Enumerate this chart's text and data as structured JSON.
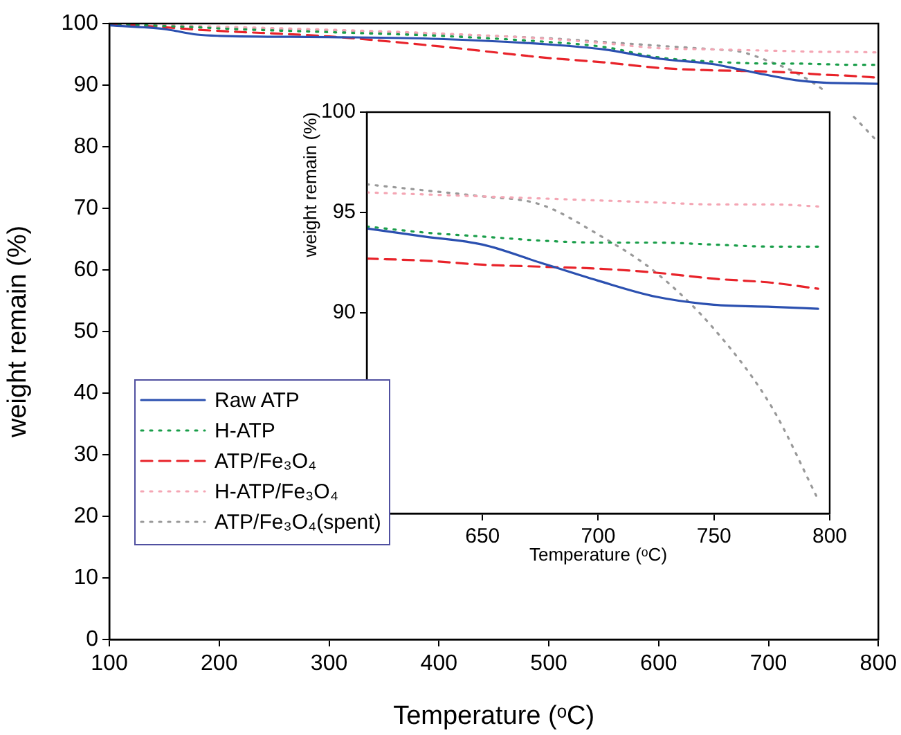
{
  "chart_data": [
    {
      "type": "line",
      "xlabel": "Temperature (ᵒC)",
      "ylabel": "weight remain (%)",
      "x": [
        100,
        150,
        180,
        200,
        300,
        400,
        500,
        550,
        600,
        650,
        675,
        700,
        725,
        750,
        775,
        800
      ],
      "series": [
        {
          "name": "Raw ATP",
          "color": "#2b50b0",
          "line_style": "solid",
          "values": [
            99.7,
            99.1,
            98.2,
            98.0,
            97.8,
            97.5,
            96.6,
            95.8,
            94.3,
            93.4,
            92.5,
            91.6,
            90.8,
            90.4,
            90.3,
            90.2
          ]
        },
        {
          "name": "H-ATP",
          "color": "#1a9e4a",
          "line_style": "dotted",
          "values": [
            100,
            99.6,
            99.4,
            99.2,
            98.6,
            98.0,
            97.0,
            96.2,
            94.5,
            93.8,
            93.6,
            93.5,
            93.5,
            93.4,
            93.3,
            93.3
          ]
        },
        {
          "name": "ATP/Fe₃O₄",
          "color": "#e8232a",
          "line_style": "dashed",
          "values": [
            100,
            99.4,
            99.0,
            98.8,
            97.9,
            96.3,
            94.4,
            93.7,
            92.8,
            92.4,
            92.3,
            92.2,
            92.0,
            91.7,
            91.5,
            91.2
          ]
        },
        {
          "name": "H-ATP/Fe₃O₄",
          "color": "#f4a6b4",
          "line_style": "dotted",
          "values": [
            100,
            99.8,
            99.6,
            99.5,
            99.0,
            98.4,
            97.5,
            96.8,
            96.0,
            95.8,
            95.7,
            95.6,
            95.5,
            95.4,
            95.4,
            95.3
          ]
        },
        {
          "name": "ATP/Fe₃O₄(spent)",
          "color": "#999999",
          "line_style": "dotted",
          "values": [
            100,
            99.6,
            99.4,
            99.3,
            98.9,
            98.3,
            97.6,
            97.0,
            96.4,
            95.8,
            95.4,
            93.9,
            92.0,
            89.2,
            85.3,
            80.7
          ]
        }
      ],
      "xlim": [
        100,
        800
      ],
      "xticks": [
        100,
        200,
        300,
        400,
        500,
        600,
        700,
        800
      ],
      "ylim": [
        0,
        100
      ],
      "yticks": [
        0,
        10,
        20,
        30,
        40,
        50,
        60,
        70,
        80,
        90,
        100
      ],
      "grid": false,
      "legend": "bottom left",
      "marker": "none"
    },
    {
      "type": "line",
      "xlabel": "Temperature (ᵒC)",
      "ylabel": "weight remain (%)",
      "x": [
        600,
        625,
        650,
        675,
        700,
        725,
        750,
        775,
        795
      ],
      "series": [
        {
          "color": "#2b50b0",
          "line_style": "solid",
          "values": [
            94.2,
            93.8,
            93.4,
            92.5,
            91.6,
            90.8,
            90.4,
            90.3,
            90.2
          ]
        },
        {
          "color": "#1a9e4a",
          "line_style": "dotted",
          "values": [
            94.3,
            94.0,
            93.8,
            93.6,
            93.5,
            93.5,
            93.4,
            93.3,
            93.3
          ]
        },
        {
          "color": "#e8232a",
          "line_style": "dashed",
          "values": [
            92.7,
            92.6,
            92.4,
            92.3,
            92.2,
            92.0,
            91.7,
            91.5,
            91.2
          ]
        },
        {
          "color": "#f4a6b4",
          "line_style": "dotted",
          "values": [
            96.0,
            95.9,
            95.8,
            95.7,
            95.6,
            95.5,
            95.4,
            95.4,
            95.3
          ]
        },
        {
          "color": "#999999",
          "line_style": "dotted",
          "values": [
            96.4,
            96.1,
            95.8,
            95.4,
            93.9,
            92.0,
            89.2,
            85.3,
            80.7
          ]
        }
      ],
      "xlim": [
        600,
        800
      ],
      "xticks": [
        650,
        700,
        750,
        800
      ],
      "ylim": [
        80,
        100
      ],
      "yticks": [
        90,
        95,
        100
      ],
      "grid": false,
      "marker": "none"
    }
  ]
}
